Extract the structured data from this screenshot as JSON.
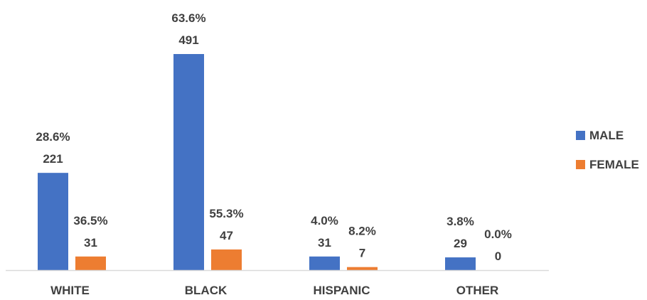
{
  "chart_data": {
    "type": "bar",
    "title": "",
    "xlabel": "",
    "ylabel": "",
    "categories": [
      "WHITE",
      "BLACK",
      "HISPANIC",
      "OTHER"
    ],
    "ylim": [
      0,
      491
    ],
    "grid": false,
    "legend_position": "right",
    "series": [
      {
        "name": "MALE",
        "color": "#4472C4",
        "values": [
          221,
          491,
          31,
          29
        ],
        "percent_labels": [
          "28.6%",
          "63.6%",
          "4.0%",
          "3.8%"
        ],
        "count_labels": [
          "221",
          "491",
          "31",
          "29"
        ]
      },
      {
        "name": "FEMALE",
        "color": "#ED7D31",
        "values": [
          31,
          47,
          7,
          0
        ],
        "percent_labels": [
          "36.5%",
          "55.3%",
          "8.2%",
          "0.0%"
        ],
        "count_labels": [
          "31",
          "47",
          "7",
          "0"
        ]
      }
    ]
  }
}
